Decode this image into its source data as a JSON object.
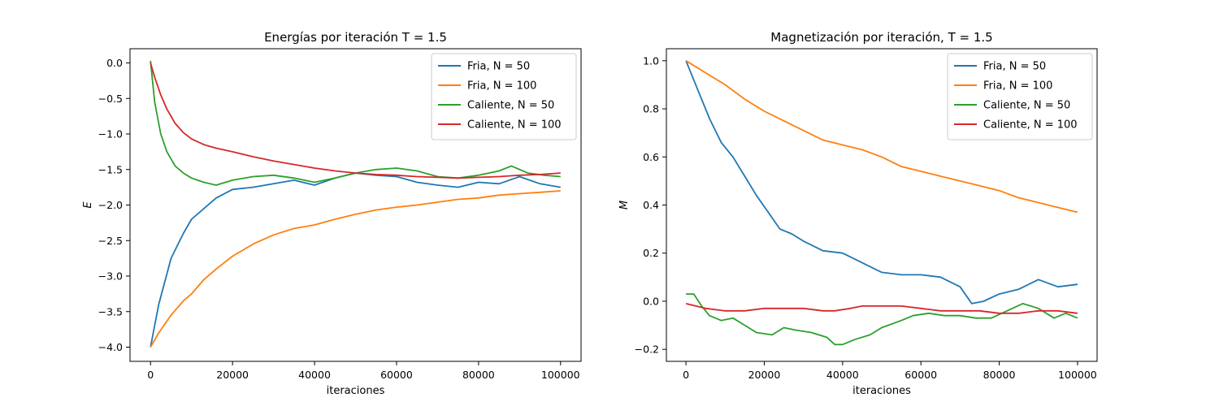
{
  "chart_data": [
    {
      "type": "line",
      "title": "Energías por iteración T = 1.5",
      "xlabel": "iteraciones",
      "ylabel": "E",
      "xlim": [
        -5000,
        105000
      ],
      "ylim": [
        -4.2,
        0.2
      ],
      "xticks": [
        0,
        20000,
        40000,
        60000,
        80000,
        100000
      ],
      "xtick_labels": [
        "0",
        "20000",
        "40000",
        "60000",
        "80000",
        "100000"
      ],
      "yticks": [
        0.0,
        -0.5,
        -1.0,
        -1.5,
        -2.0,
        -2.5,
        -3.0,
        -3.5,
        -4.0
      ],
      "ytick_labels": [
        "0.0",
        "−0.5",
        "−1.0",
        "−1.5",
        "−2.0",
        "−2.5",
        "−3.0",
        "−3.5",
        "−4.0"
      ],
      "grid": false,
      "legend_position": "top-right",
      "series": [
        {
          "name": "Fria, N = 50",
          "color": "#1f77b4",
          "x": [
            0,
            2000,
            5000,
            8000,
            10000,
            13000,
            16000,
            20000,
            25000,
            30000,
            35000,
            40000,
            45000,
            50000,
            55000,
            60000,
            65000,
            70000,
            75000,
            80000,
            85000,
            90000,
            95000,
            100000
          ],
          "y": [
            -4.0,
            -3.4,
            -2.75,
            -2.4,
            -2.2,
            -2.05,
            -1.9,
            -1.78,
            -1.75,
            -1.7,
            -1.65,
            -1.72,
            -1.62,
            -1.55,
            -1.58,
            -1.6,
            -1.68,
            -1.72,
            -1.75,
            -1.68,
            -1.7,
            -1.6,
            -1.7,
            -1.75
          ]
        },
        {
          "name": "Fria, N = 100",
          "color": "#ff7f0e",
          "x": [
            0,
            2000,
            5000,
            8000,
            10000,
            13000,
            16000,
            20000,
            25000,
            30000,
            35000,
            40000,
            45000,
            50000,
            55000,
            60000,
            65000,
            70000,
            75000,
            80000,
            85000,
            90000,
            95000,
            100000
          ],
          "y": [
            -4.0,
            -3.8,
            -3.55,
            -3.35,
            -3.25,
            -3.05,
            -2.9,
            -2.72,
            -2.55,
            -2.42,
            -2.33,
            -2.28,
            -2.2,
            -2.13,
            -2.07,
            -2.03,
            -2.0,
            -1.96,
            -1.92,
            -1.9,
            -1.86,
            -1.84,
            -1.82,
            -1.8
          ]
        },
        {
          "name": "Caliente, N = 50",
          "color": "#2ca02c",
          "x": [
            0,
            1000,
            2500,
            4000,
            6000,
            8000,
            10000,
            13000,
            16000,
            20000,
            25000,
            30000,
            35000,
            40000,
            45000,
            50000,
            55000,
            60000,
            65000,
            70000,
            75000,
            80000,
            85000,
            88000,
            92000,
            96000,
            100000
          ],
          "y": [
            0.03,
            -0.55,
            -1.0,
            -1.25,
            -1.45,
            -1.55,
            -1.62,
            -1.68,
            -1.72,
            -1.65,
            -1.6,
            -1.58,
            -1.62,
            -1.68,
            -1.62,
            -1.55,
            -1.5,
            -1.48,
            -1.52,
            -1.6,
            -1.62,
            -1.58,
            -1.52,
            -1.45,
            -1.55,
            -1.58,
            -1.6
          ]
        },
        {
          "name": "Caliente, N = 100",
          "color": "#d62728",
          "x": [
            0,
            1000,
            2500,
            4000,
            6000,
            8000,
            10000,
            13000,
            16000,
            20000,
            25000,
            30000,
            35000,
            40000,
            45000,
            50000,
            55000,
            60000,
            65000,
            70000,
            75000,
            80000,
            85000,
            90000,
            95000,
            100000
          ],
          "y": [
            0.0,
            -0.2,
            -0.45,
            -0.65,
            -0.85,
            -0.98,
            -1.07,
            -1.15,
            -1.2,
            -1.25,
            -1.32,
            -1.38,
            -1.43,
            -1.48,
            -1.52,
            -1.55,
            -1.57,
            -1.58,
            -1.6,
            -1.61,
            -1.62,
            -1.61,
            -1.6,
            -1.58,
            -1.57,
            -1.55
          ]
        }
      ]
    },
    {
      "type": "line",
      "title": "Magnetización por iteración, T = 1.5",
      "xlabel": "iteraciones",
      "ylabel": "M",
      "xlim": [
        -5000,
        105000
      ],
      "ylim": [
        -0.25,
        1.05
      ],
      "xticks": [
        0,
        20000,
        40000,
        60000,
        80000,
        100000
      ],
      "xtick_labels": [
        "0",
        "20000",
        "40000",
        "60000",
        "80000",
        "100000"
      ],
      "yticks": [
        1.0,
        0.8,
        0.6,
        0.4,
        0.2,
        0.0,
        -0.2
      ],
      "ytick_labels": [
        "1.0",
        "0.8",
        "0.6",
        "0.4",
        "0.2",
        "0.0",
        "−0.2"
      ],
      "grid": false,
      "legend_position": "top-right",
      "series": [
        {
          "name": "Fria, N = 50",
          "color": "#1f77b4",
          "x": [
            0,
            3000,
            6000,
            9000,
            12000,
            15000,
            18000,
            21000,
            24000,
            27000,
            30000,
            35000,
            40000,
            45000,
            50000,
            55000,
            60000,
            65000,
            70000,
            73000,
            76000,
            80000,
            85000,
            90000,
            95000,
            100000
          ],
          "y": [
            1.0,
            0.88,
            0.76,
            0.66,
            0.6,
            0.52,
            0.44,
            0.37,
            0.3,
            0.28,
            0.25,
            0.21,
            0.2,
            0.16,
            0.12,
            0.11,
            0.11,
            0.1,
            0.06,
            -0.01,
            0.0,
            0.03,
            0.05,
            0.09,
            0.06,
            0.07
          ]
        },
        {
          "name": "Fria, N = 100",
          "color": "#ff7f0e",
          "x": [
            0,
            5000,
            10000,
            15000,
            20000,
            25000,
            30000,
            35000,
            40000,
            45000,
            50000,
            55000,
            60000,
            65000,
            70000,
            75000,
            80000,
            85000,
            90000,
            95000,
            100000
          ],
          "y": [
            1.0,
            0.95,
            0.9,
            0.84,
            0.79,
            0.75,
            0.71,
            0.67,
            0.65,
            0.63,
            0.6,
            0.56,
            0.54,
            0.52,
            0.5,
            0.48,
            0.46,
            0.43,
            0.41,
            0.39,
            0.37
          ]
        },
        {
          "name": "Caliente, N = 50",
          "color": "#2ca02c",
          "x": [
            0,
            2000,
            4000,
            6000,
            9000,
            12000,
            15000,
            18000,
            22000,
            25000,
            28000,
            32000,
            36000,
            38000,
            40000,
            43000,
            47000,
            50000,
            55000,
            58000,
            62000,
            66000,
            70000,
            74000,
            78000,
            82000,
            86000,
            90000,
            94000,
            97000,
            100000
          ],
          "y": [
            0.03,
            0.03,
            -0.02,
            -0.06,
            -0.08,
            -0.07,
            -0.1,
            -0.13,
            -0.14,
            -0.11,
            -0.12,
            -0.13,
            -0.15,
            -0.18,
            -0.18,
            -0.16,
            -0.14,
            -0.11,
            -0.08,
            -0.06,
            -0.05,
            -0.06,
            -0.06,
            -0.07,
            -0.07,
            -0.04,
            -0.01,
            -0.03,
            -0.07,
            -0.05,
            -0.07
          ]
        },
        {
          "name": "Caliente, N = 100",
          "color": "#d62728",
          "x": [
            0,
            5000,
            10000,
            15000,
            20000,
            25000,
            30000,
            35000,
            38000,
            42000,
            45000,
            50000,
            55000,
            60000,
            65000,
            70000,
            75000,
            80000,
            85000,
            90000,
            95000,
            100000
          ],
          "y": [
            -0.01,
            -0.03,
            -0.04,
            -0.04,
            -0.03,
            -0.03,
            -0.03,
            -0.04,
            -0.04,
            -0.03,
            -0.02,
            -0.02,
            -0.02,
            -0.03,
            -0.04,
            -0.04,
            -0.04,
            -0.05,
            -0.05,
            -0.04,
            -0.04,
            -0.05
          ]
        }
      ]
    }
  ]
}
